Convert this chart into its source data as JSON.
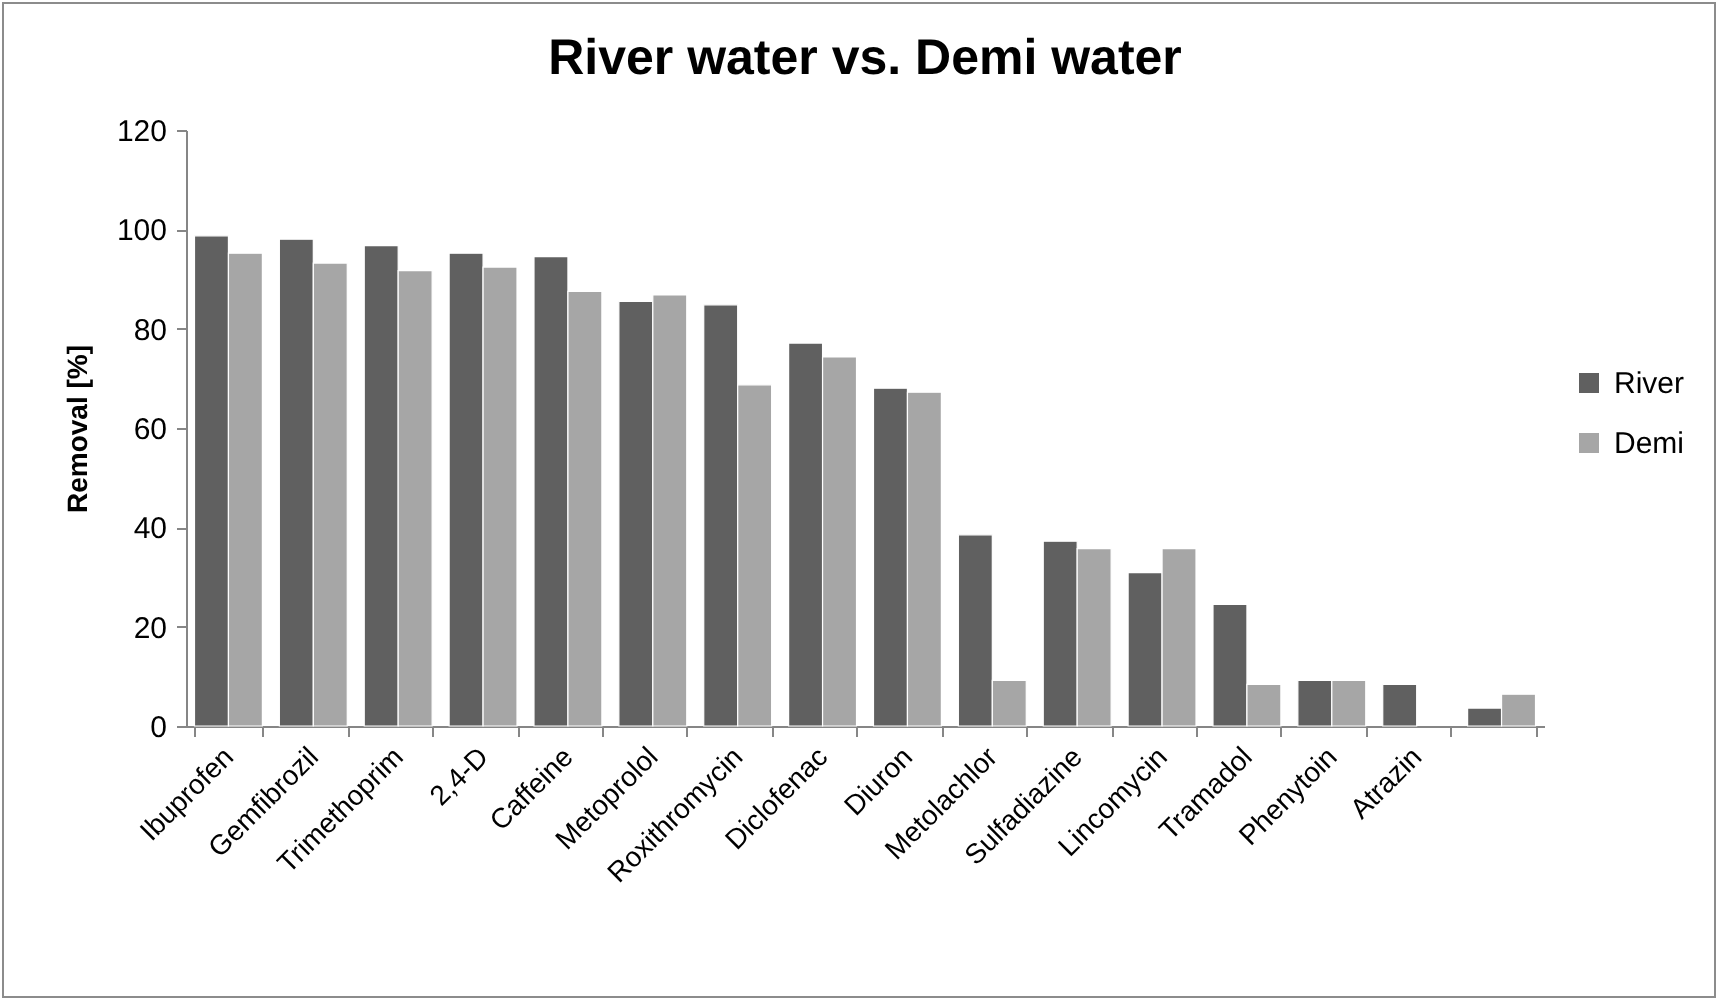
{
  "chart_data": {
    "type": "bar",
    "title": "River water vs. Demi water",
    "ylabel": "Removal [%]",
    "categories": [
      "Ibuprofen",
      "Gemfibrozil",
      "Trimethoprim",
      "2,4-D",
      "Caffeine",
      "Metoprolol",
      "Roxithromycin",
      "Diclofenac",
      "Diuron",
      "Metolachlor",
      "Sulfadiazine",
      "Lincomycin",
      "Tramadol",
      "Phenytoin",
      "Atrazin",
      null
    ],
    "series": [
      {
        "name": "River",
        "color": "#606060",
        "values": [
          98.7,
          98,
          96.7,
          95.2,
          94.5,
          85.5,
          84.8,
          77.1,
          68,
          38.5,
          37.2,
          30.9,
          24.5,
          9.2,
          8.4,
          3.6
        ]
      },
      {
        "name": "Demi",
        "color": "#a6a6a6",
        "values": [
          95.2,
          93.2,
          91.7,
          92.4,
          87.5,
          86.8,
          68.7,
          74.3,
          67.2,
          9.2,
          35.7,
          35.7,
          8.4,
          9.2,
          null,
          6.4
        ]
      }
    ],
    "ylim": [
      0,
      120
    ],
    "yticks": [
      0,
      20,
      40,
      60,
      80,
      100,
      120
    ],
    "grid": false,
    "legend": "right"
  }
}
